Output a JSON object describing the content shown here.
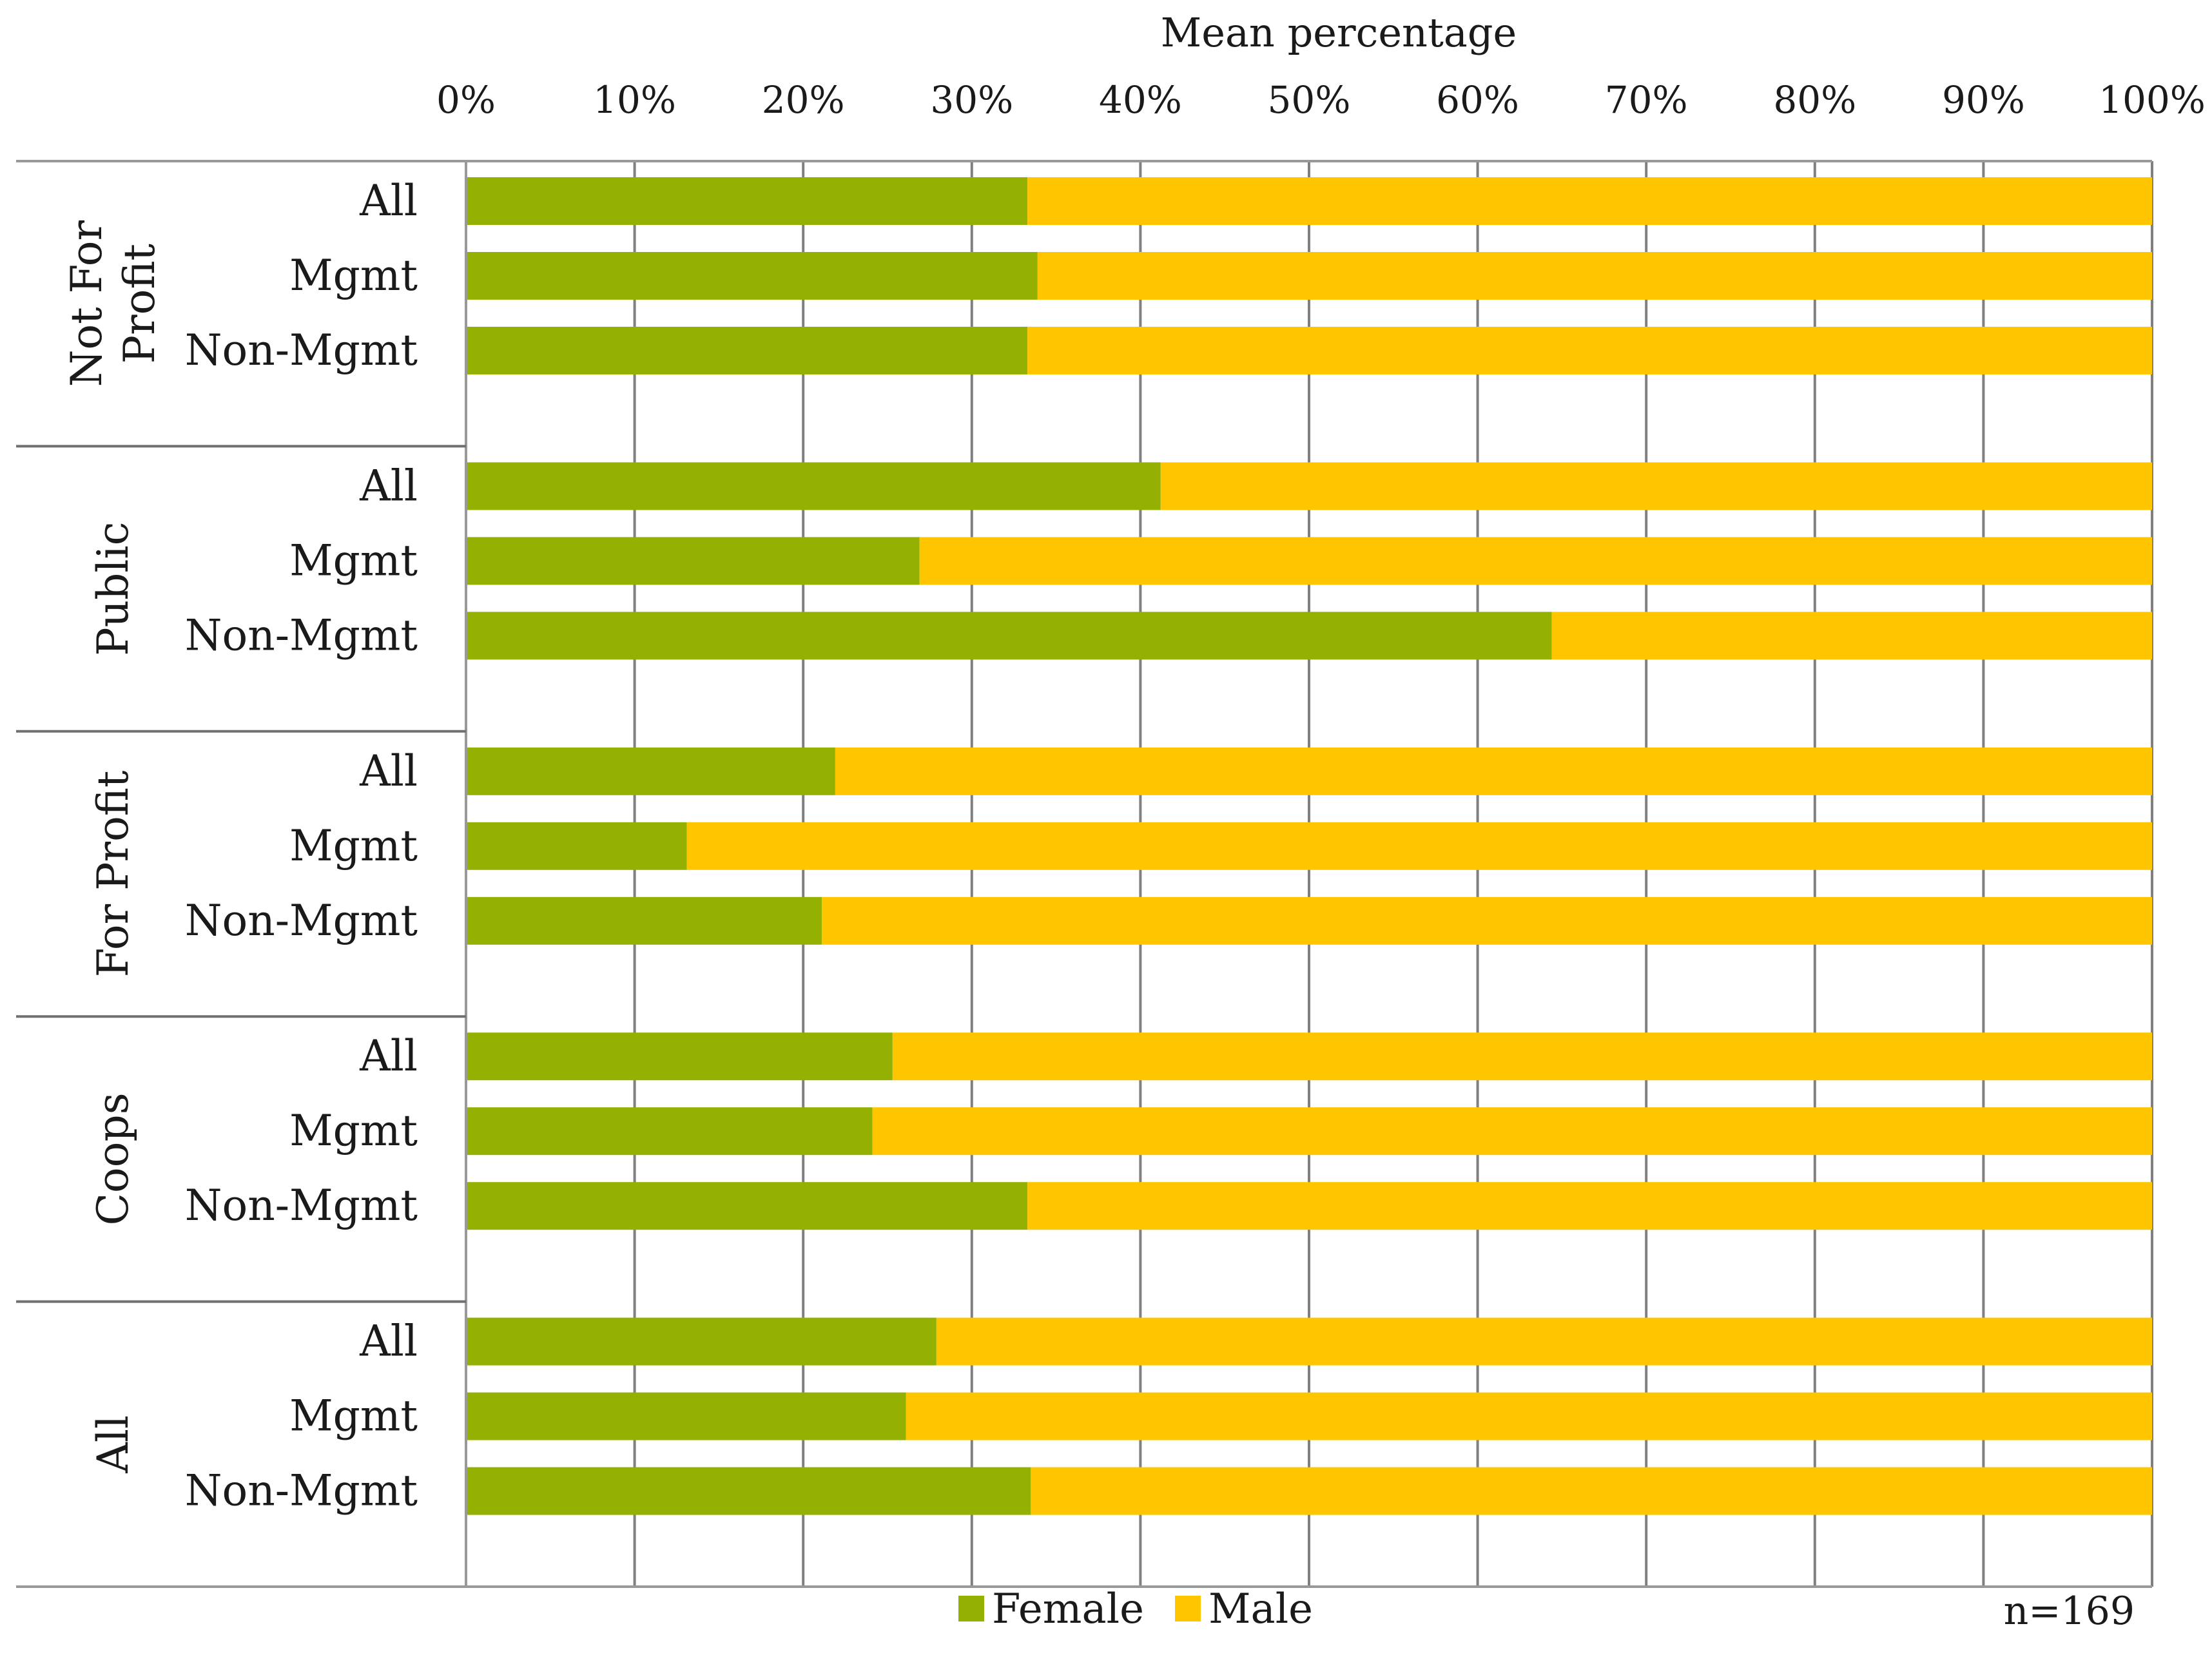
{
  "chart_data": {
    "type": "bar",
    "orientation": "horizontal",
    "stacked": true,
    "xlabel": "Mean percentage",
    "xlim": [
      0,
      100
    ],
    "x_ticks": [
      "0%",
      "10%",
      "20%",
      "30%",
      "40%",
      "50%",
      "60%",
      "70%",
      "80%",
      "90%",
      "100%"
    ],
    "grid": true,
    "legend": {
      "position": "bottom-center"
    },
    "colors": {
      "Female": "#94B000",
      "Male": "#FFC600",
      "grid": "#808080",
      "axis": "#999999"
    },
    "note": "n=169",
    "groups": [
      {
        "label_lines": [
          "Not For",
          "Profit"
        ],
        "rows": [
          {
            "label": "All",
            "female": 33.3,
            "male": 66.7
          },
          {
            "label": "Mgmt",
            "female": 33.9,
            "male": 66.1
          },
          {
            "label": "Non-Mgmt",
            "female": 33.3,
            "male": 66.7
          }
        ]
      },
      {
        "label_lines": [
          "Public"
        ],
        "rows": [
          {
            "label": "All",
            "female": 41.2,
            "male": 58.8
          },
          {
            "label": "Mgmt",
            "female": 26.9,
            "male": 73.1
          },
          {
            "label": "Non-Mgmt",
            "female": 64.4,
            "male": 35.6
          }
        ]
      },
      {
        "label_lines": [
          "For Profit"
        ],
        "rows": [
          {
            "label": "All",
            "female": 21.9,
            "male": 78.1
          },
          {
            "label": "Mgmt",
            "female": 13.1,
            "male": 86.9
          },
          {
            "label": "Non-Mgmt",
            "female": 21.1,
            "male": 78.9
          }
        ]
      },
      {
        "label_lines": [
          "Coops"
        ],
        "rows": [
          {
            "label": "All",
            "female": 25.3,
            "male": 74.7
          },
          {
            "label": "Mgmt",
            "female": 24.1,
            "male": 75.9
          },
          {
            "label": "Non-Mgmt",
            "female": 33.3,
            "male": 66.7
          }
        ]
      },
      {
        "label_lines": [
          "All"
        ],
        "rows": [
          {
            "label": "All",
            "female": 27.9,
            "male": 72.1
          },
          {
            "label": "Mgmt",
            "female": 26.1,
            "male": 73.9
          },
          {
            "label": "Non-Mgmt",
            "female": 33.5,
            "male": 66.5
          }
        ]
      }
    ],
    "series": [
      {
        "name": "Female",
        "key": "female"
      },
      {
        "name": "Male",
        "key": "male"
      }
    ]
  }
}
